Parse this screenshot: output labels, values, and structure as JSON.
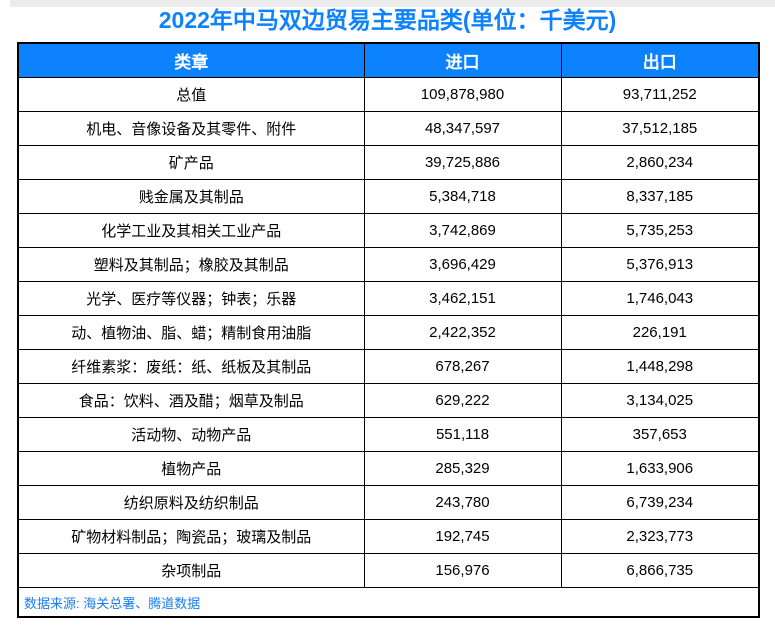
{
  "title": "2022年中马双边贸易主要品类(单位：千美元)",
  "colors": {
    "accent_blue": "#0d82ff",
    "header_text": "#ffffff",
    "source_text_blue": "#1a7cf0",
    "table_border": "#000000",
    "top_strip_gray": "#ececec",
    "body_text": "#000000",
    "background": "#ffffff"
  },
  "chart_data": {
    "type": "table",
    "title": "2022年中马双边贸易主要品类(单位：千美元)",
    "unit": "千美元",
    "columns": [
      "类章",
      "进口",
      "出口"
    ],
    "rows": [
      [
        "总值",
        "109,878,980",
        "93,711,252"
      ],
      [
        "机电、音像设备及其零件、附件",
        "48,347,597",
        "37,512,185"
      ],
      [
        "矿产品",
        "39,725,886",
        "2,860,234"
      ],
      [
        "贱金属及其制品",
        "5,384,718",
        "8,337,185"
      ],
      [
        "化学工业及其相关工业产品",
        "3,742,869",
        "5,735,253"
      ],
      [
        "塑料及其制品；橡胶及其制品",
        "3,696,429",
        "5,376,913"
      ],
      [
        "光学、医疗等仪器；钟表；乐器",
        "3,462,151",
        "1,746,043"
      ],
      [
        "动、植物油、脂、蜡；精制食用油脂",
        "2,422,352",
        "226,191"
      ],
      [
        "纤维素浆：废纸：纸、纸板及其制品",
        "678,267",
        "1,448,298"
      ],
      [
        "食品：饮料、酒及醋；烟草及制品",
        "629,222",
        "3,134,025"
      ],
      [
        "活动物、动物产品",
        "551,118",
        "357,653"
      ],
      [
        "植物产品",
        "285,329",
        "1,633,906"
      ],
      [
        "纺织原料及纺织制品",
        "243,780",
        "6,739,234"
      ],
      [
        "矿物材料制品；陶瓷品；玻璃及制品",
        "192,745",
        "2,323,773"
      ],
      [
        "杂项制品",
        "156,976",
        "6,866,735"
      ]
    ],
    "source": "数据来源: 海关总署、腾道数据"
  }
}
